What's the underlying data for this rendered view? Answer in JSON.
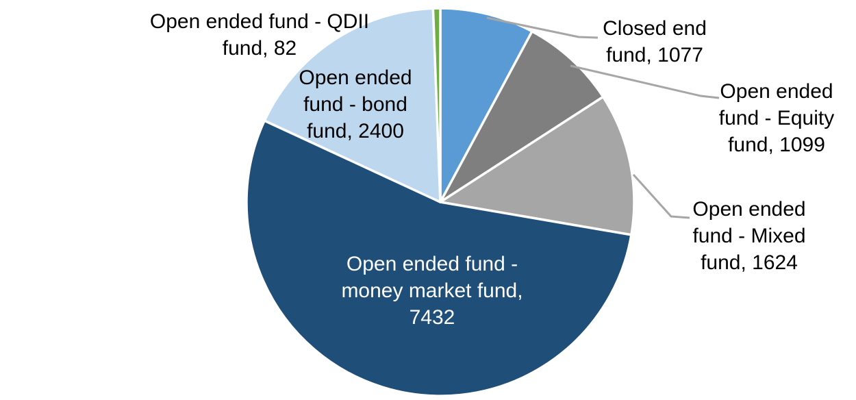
{
  "chart_data": {
    "type": "pie",
    "title": "",
    "total": 13714,
    "start_angle_deg": 0,
    "direction": "clockwise",
    "legend": "none",
    "grid": false,
    "slice_border_color": "#FFFFFF",
    "leader_line_color": "#A6A6A6",
    "background_color": "#FFFFFF",
    "segments": [
      {
        "id": "closed-end-fund",
        "name": "Closed end fund",
        "value": 1077,
        "color": "#5B9BD5",
        "label_text": "Closed end fund, 1077",
        "label_lines": [
          "Closed end",
          "fund, 1077"
        ],
        "label_color": "#000000",
        "label_position": "outside-right",
        "leader_line": true
      },
      {
        "id": "open-ended-equity",
        "name": "Open ended fund - Equity fund",
        "value": 1099,
        "color": "#7F7F7F",
        "label_text": "Open ended fund - Equity fund, 1099",
        "label_lines": [
          "Open ended",
          "fund - Equity",
          "fund, 1099"
        ],
        "label_color": "#000000",
        "label_position": "outside-right",
        "leader_line": true
      },
      {
        "id": "open-ended-mixed",
        "name": "Open ended fund - Mixed fund",
        "value": 1624,
        "color": "#A6A6A6",
        "label_text": "Open ended fund - Mixed fund, 1624",
        "label_lines": [
          "Open ended",
          "fund - Mixed",
          "fund, 1624"
        ],
        "label_color": "#000000",
        "label_position": "outside-right",
        "leader_line": true
      },
      {
        "id": "open-ended-money-market",
        "name": "Open ended fund - money market fund",
        "value": 7432,
        "color": "#1F4E79",
        "label_text": "Open ended fund - money market fund, 7432",
        "label_lines": [
          "Open ended fund -",
          "money market fund,",
          "7432"
        ],
        "label_color": "#FFFFFF",
        "label_position": "inside",
        "leader_line": false
      },
      {
        "id": "open-ended-bond",
        "name": "Open ended fund - bond fund",
        "value": 2400,
        "color": "#BDD7EE",
        "label_text": "Open ended fund - bond fund, 2400",
        "label_lines": [
          "Open ended",
          "fund - bond",
          "fund, 2400"
        ],
        "label_color": "#000000",
        "label_position": "on-slice",
        "leader_line": false
      },
      {
        "id": "open-ended-qdii",
        "name": "Open ended fund - QDII fund",
        "value": 82,
        "color": "#70AD47",
        "label_text": "Open ended fund - QDII fund, 82",
        "label_lines": [
          "Open ended fund - QDII",
          "fund, 82"
        ],
        "label_color": "#000000",
        "label_position": "outside-left",
        "leader_line": false
      }
    ]
  }
}
